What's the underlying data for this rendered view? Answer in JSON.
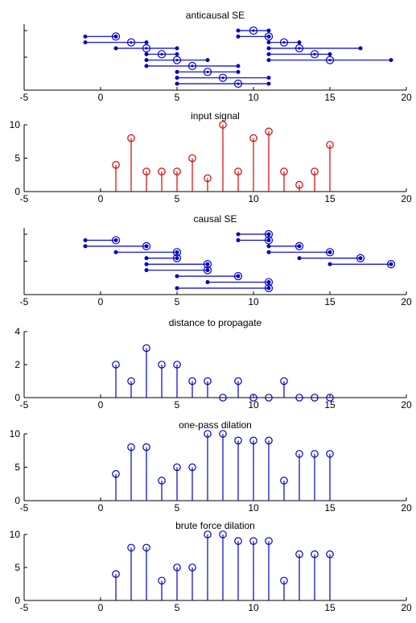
{
  "figure": {
    "colors": {
      "stem_blue": "#0000cc",
      "stem_red": "#dd0000",
      "axis": "#000000"
    }
  },
  "chart_data": [
    {
      "type": "segments",
      "title": "anticausal SE",
      "xlim": [
        -5,
        20
      ],
      "xticks": [
        -5,
        0,
        5,
        10,
        15,
        20
      ],
      "y_ticks_shown": false,
      "rows": 9,
      "segments": [
        {
          "x": 1,
          "from": -1,
          "to": 1,
          "row": 1
        },
        {
          "x": 2,
          "from": -1,
          "to": 3,
          "row": 2
        },
        {
          "x": 3,
          "from": 1,
          "to": 5,
          "row": 3
        },
        {
          "x": 4,
          "from": 3,
          "to": 5,
          "row": 4
        },
        {
          "x": 5,
          "from": 3,
          "to": 7,
          "row": 5
        },
        {
          "x": 6,
          "from": 3,
          "to": 9,
          "row": 6
        },
        {
          "x": 7,
          "from": 5,
          "to": 9,
          "row": 7
        },
        {
          "x": 8,
          "from": 5,
          "to": 11,
          "row": 8
        },
        {
          "x": 9,
          "from": 5,
          "to": 11,
          "row": 9
        },
        {
          "x": 10,
          "from": 9,
          "to": 11,
          "row": 0
        },
        {
          "x": 11,
          "from": 9,
          "to": 11,
          "row": 1
        },
        {
          "x": 12,
          "from": 11,
          "to": 13,
          "row": 2
        },
        {
          "x": 13,
          "from": 11,
          "to": 17,
          "row": 3
        },
        {
          "x": 14,
          "from": 11,
          "to": 15,
          "row": 4
        },
        {
          "x": 15,
          "from": 11,
          "to": 19,
          "row": 5
        }
      ]
    },
    {
      "type": "stem",
      "title": "input signal",
      "color": "#dd0000",
      "xlim": [
        -5,
        20
      ],
      "ylim": [
        0,
        10
      ],
      "xticks": [
        -5,
        0,
        5,
        10,
        15,
        20
      ],
      "yticks": [
        0,
        5,
        10
      ],
      "x": [
        1,
        2,
        3,
        4,
        5,
        6,
        7,
        8,
        9,
        10,
        11,
        12,
        13,
        14,
        15
      ],
      "values": [
        4,
        8,
        3,
        3,
        3,
        5,
        2,
        10,
        3,
        8,
        9,
        3,
        1,
        3,
        7
      ]
    },
    {
      "type": "segments",
      "title": "causal SE",
      "xlim": [
        -5,
        20
      ],
      "xticks": [
        -5,
        0,
        5,
        10,
        15,
        20
      ],
      "y_ticks_shown": false,
      "rows": 9,
      "segments": [
        {
          "x": 1,
          "from": -1,
          "to": 1,
          "row": 1
        },
        {
          "x": 3,
          "from": -1,
          "to": 3,
          "row": 2
        },
        {
          "x": 5,
          "from": 1,
          "to": 5,
          "row": 3
        },
        {
          "x": 5,
          "from": 3,
          "to": 5,
          "row": 4
        },
        {
          "x": 7,
          "from": 3,
          "to": 7,
          "row": 5
        },
        {
          "x": 7,
          "from": 3,
          "to": 7,
          "row": 6
        },
        {
          "x": 9,
          "from": 5,
          "to": 9,
          "row": 7
        },
        {
          "x": 11,
          "from": 7,
          "to": 11,
          "row": 8
        },
        {
          "x": 11,
          "from": 5,
          "to": 11,
          "row": 9
        },
        {
          "x": 11,
          "from": 9,
          "to": 11,
          "row": 0
        },
        {
          "x": 11,
          "from": 9,
          "to": 11,
          "row": 1
        },
        {
          "x": 13,
          "from": 11,
          "to": 13,
          "row": 2
        },
        {
          "x": 15,
          "from": 11,
          "to": 15,
          "row": 3
        },
        {
          "x": 17,
          "from": 13,
          "to": 17,
          "row": 4
        },
        {
          "x": 19,
          "from": 15,
          "to": 19,
          "row": 5
        }
      ]
    },
    {
      "type": "stem",
      "title": "distance to propagate",
      "color": "#0000cc",
      "xlim": [
        -5,
        20
      ],
      "ylim": [
        0,
        4
      ],
      "xticks": [
        -5,
        0,
        5,
        10,
        15,
        20
      ],
      "yticks": [
        0,
        2,
        4
      ],
      "x": [
        1,
        2,
        3,
        4,
        5,
        6,
        7,
        8,
        9,
        10,
        11,
        12,
        13,
        14,
        15
      ],
      "values": [
        2,
        1,
        3,
        2,
        2,
        1,
        1,
        0,
        1,
        0,
        0,
        1,
        0,
        0,
        0
      ]
    },
    {
      "type": "stem",
      "title": "one-pass dilation",
      "color": "#0000cc",
      "xlim": [
        -5,
        20
      ],
      "ylim": [
        0,
        10
      ],
      "xticks": [
        -5,
        0,
        5,
        10,
        15,
        20
      ],
      "yticks": [
        0,
        5,
        10
      ],
      "x": [
        1,
        2,
        3,
        4,
        5,
        6,
        7,
        8,
        9,
        10,
        11,
        12,
        13,
        14,
        15
      ],
      "values": [
        4,
        8,
        8,
        3,
        5,
        5,
        10,
        10,
        9,
        9,
        9,
        3,
        7,
        7,
        7
      ]
    },
    {
      "type": "stem",
      "title": "brute force dilation",
      "color": "#0000cc",
      "xlim": [
        -5,
        20
      ],
      "ylim": [
        0,
        10
      ],
      "xticks": [
        -5,
        0,
        5,
        10,
        15,
        20
      ],
      "yticks": [
        0,
        5,
        10
      ],
      "x": [
        1,
        2,
        3,
        4,
        5,
        6,
        7,
        8,
        9,
        10,
        11,
        12,
        13,
        14,
        15
      ],
      "values": [
        4,
        8,
        8,
        3,
        5,
        5,
        10,
        10,
        9,
        9,
        9,
        3,
        7,
        7,
        7
      ]
    }
  ]
}
